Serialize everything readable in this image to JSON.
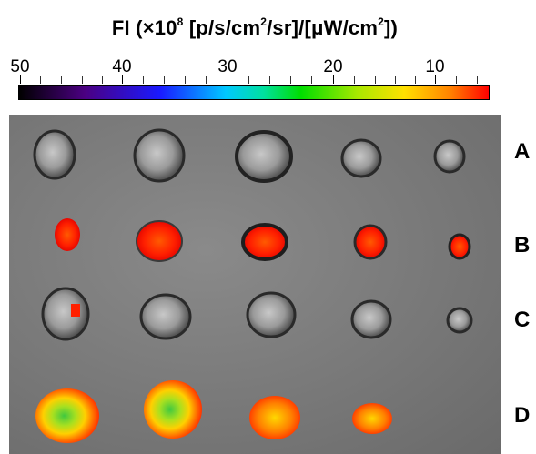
{
  "colorbar": {
    "title_prefix": "FI (×10",
    "title_exp": "8",
    "title_mid": " [p/s/cm",
    "title_exp2": "2",
    "title_mid2": "/sr]/[μW/cm",
    "title_exp3": "2",
    "title_suffix": "])",
    "ticks": [
      "50",
      "40",
      "30",
      "20",
      "10"
    ],
    "colors": [
      "#000000",
      "#4b0082",
      "#1a1aff",
      "#00c8ff",
      "#00dd00",
      "#ffe000",
      "#ff8000",
      "#ff0000"
    ]
  },
  "rows": [
    {
      "label": "A",
      "signal": "none"
    },
    {
      "label": "B",
      "signal": "red"
    },
    {
      "label": "C",
      "signal": "trace"
    },
    {
      "label": "D",
      "signal": "high"
    }
  ]
}
